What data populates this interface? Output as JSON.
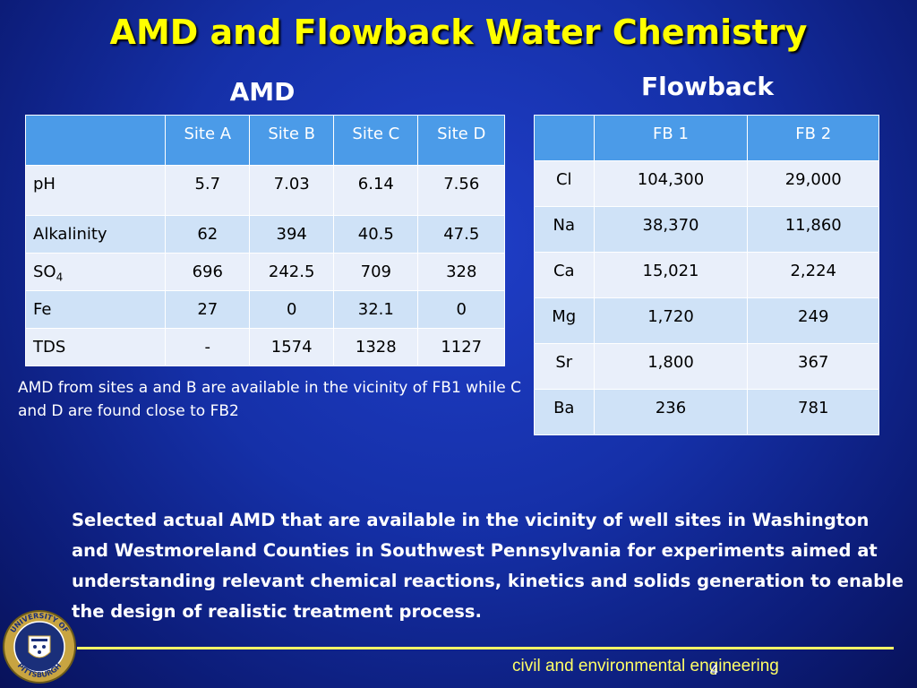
{
  "title": "AMD and Flowback Water Chemistry",
  "amd_section": {
    "heading": "AMD",
    "columns": [
      "",
      "Site A",
      "Site B",
      "Site C",
      "Site D"
    ],
    "rows": [
      {
        "label": "pH",
        "values": [
          "5.7",
          "7.03",
          "6.14",
          "7.56"
        ]
      },
      {
        "label": "Alkalinity",
        "values": [
          "62",
          "394",
          "40.5",
          "47.5"
        ]
      },
      {
        "label": "SO",
        "label_sub": "4",
        "values": [
          "696",
          "242.5",
          "709",
          "328"
        ]
      },
      {
        "label": "Fe",
        "values": [
          "27",
          "0",
          "32.1",
          "0"
        ]
      },
      {
        "label": "TDS",
        "values": [
          "-",
          "1574",
          "1328",
          "1127"
        ]
      }
    ],
    "note": "AMD from sites a and B are available in the vicinity of FB1 while C and D are found close to FB2"
  },
  "flowback_section": {
    "heading": "Flowback",
    "columns": [
      "",
      "FB 1",
      "FB 2"
    ],
    "rows": [
      {
        "label": "Cl",
        "values": [
          "104,300",
          "29,000"
        ]
      },
      {
        "label": "Na",
        "values": [
          "38,370",
          "11,860"
        ]
      },
      {
        "label": "Ca",
        "values": [
          "15,021",
          "2,224"
        ]
      },
      {
        "label": "Mg",
        "values": [
          "1,720",
          "249"
        ]
      },
      {
        "label": "Sr",
        "values": [
          "1,800",
          "367"
        ]
      },
      {
        "label": "Ba",
        "values": [
          "236",
          "781"
        ]
      }
    ]
  },
  "body_text": "Selected actual AMD that are available in the vicinity of well sites in Washington and Westmoreland Counties in Southwest Pennsylvania for experiments aimed at understanding relevant chemical reactions, kinetics and solids generation to enable the design of realistic treatment process.",
  "footer": {
    "department": "civil and environmental engineering",
    "page_number": "4"
  },
  "logo": {
    "text_top": "UNIVERSITY OF",
    "text_bottom": "PITTSBURGH"
  },
  "colors": {
    "title": "#ffff00",
    "header_cell": "#4b9be8",
    "row_dark": "#cfe2f7",
    "row_light": "#e9effa",
    "rule": "#ffff66"
  }
}
